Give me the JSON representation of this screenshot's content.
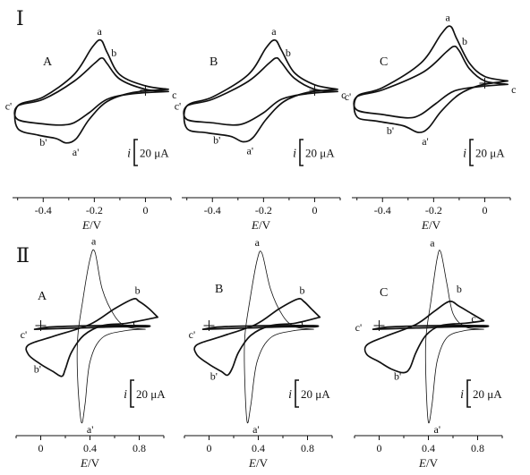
{
  "figure": {
    "row_labels": [
      "Ⅰ",
      "Ⅱ"
    ],
    "panel_labels": [
      "A",
      "B",
      "C"
    ],
    "scale_symbol": "i",
    "scale_value": "20 μA",
    "xlabel": "E/V"
  },
  "chart_data": [
    {
      "type": "line",
      "panel": "Ⅰ-A",
      "xlabel": "E/V",
      "xlim": [
        -0.52,
        0.1
      ],
      "xticks": [
        -0.4,
        -0.2,
        0
      ],
      "tick_labels": [
        "-0.4",
        "-0.2",
        "0"
      ],
      "point_labels": [
        "a",
        "b",
        "c",
        "c'",
        "b'",
        "a'"
      ],
      "series": [
        {
          "label": "outer",
          "values": [
            [
              0.09,
              1
            ],
            [
              0.0,
              4
            ],
            [
              -0.1,
              14
            ],
            [
              -0.15,
              34
            ],
            [
              -0.175,
              45
            ],
            [
              -0.21,
              38
            ],
            [
              -0.28,
              14
            ],
            [
              -0.4,
              -6
            ],
            [
              -0.5,
              -14
            ],
            [
              -0.5,
              -34
            ],
            [
              -0.42,
              -40
            ],
            [
              -0.35,
              -43
            ],
            [
              -0.31,
              -47
            ],
            [
              -0.27,
              -43
            ],
            [
              -0.22,
              -26
            ],
            [
              -0.15,
              -10
            ],
            [
              -0.05,
              -2
            ],
            [
              0.09,
              1
            ]
          ]
        },
        {
          "label": "inner",
          "values": [
            [
              0.09,
              -1
            ],
            [
              0.0,
              1
            ],
            [
              -0.1,
              10
            ],
            [
              -0.15,
              24
            ],
            [
              -0.17,
              29
            ],
            [
              -0.2,
              24
            ],
            [
              -0.28,
              8
            ],
            [
              -0.4,
              -8
            ],
            [
              -0.5,
              -14
            ],
            [
              -0.5,
              -26
            ],
            [
              -0.4,
              -30
            ],
            [
              -0.33,
              -31
            ],
            [
              -0.28,
              -29
            ],
            [
              -0.22,
              -20
            ],
            [
              -0.15,
              -8
            ],
            [
              -0.05,
              -3
            ],
            [
              0.09,
              -1
            ]
          ]
        }
      ]
    },
    {
      "type": "line",
      "panel": "Ⅰ-B",
      "xlabel": "E/V",
      "xlim": [
        -0.52,
        0.1
      ],
      "xticks": [
        -0.4,
        -0.2,
        0
      ],
      "tick_labels": [
        "-0.4",
        "-0.2",
        "0"
      ],
      "point_labels": [
        "a",
        "b",
        "c",
        "c'",
        "b'",
        "a'"
      ],
      "series": [
        {
          "label": "outer",
          "values": [
            [
              0.09,
              1
            ],
            [
              0.0,
              5
            ],
            [
              -0.08,
              16
            ],
            [
              -0.13,
              36
            ],
            [
              -0.155,
              45
            ],
            [
              -0.19,
              38
            ],
            [
              -0.26,
              14
            ],
            [
              -0.4,
              -6
            ],
            [
              -0.5,
              -14
            ],
            [
              -0.5,
              -34
            ],
            [
              -0.42,
              -38
            ],
            [
              -0.33,
              -41
            ],
            [
              -0.28,
              -46
            ],
            [
              -0.24,
              -42
            ],
            [
              -0.19,
              -26
            ],
            [
              -0.12,
              -10
            ],
            [
              -0.03,
              -2
            ],
            [
              0.09,
              1
            ]
          ]
        },
        {
          "label": "inner",
          "values": [
            [
              0.09,
              -1
            ],
            [
              0.0,
              1
            ],
            [
              -0.08,
              11
            ],
            [
              -0.13,
              25
            ],
            [
              -0.15,
              29
            ],
            [
              -0.18,
              24
            ],
            [
              -0.26,
              8
            ],
            [
              -0.4,
              -8
            ],
            [
              -0.5,
              -14
            ],
            [
              -0.5,
              -26
            ],
            [
              -0.4,
              -29
            ],
            [
              -0.32,
              -31
            ],
            [
              -0.27,
              -29
            ],
            [
              -0.2,
              -20
            ],
            [
              -0.13,
              -8
            ],
            [
              -0.03,
              -3
            ],
            [
              0.09,
              -1
            ]
          ]
        }
      ]
    },
    {
      "type": "line",
      "panel": "Ⅰ-C",
      "xlabel": "E/V",
      "xlim": [
        -0.52,
        0.1
      ],
      "xticks": [
        -0.4,
        -0.2,
        0
      ],
      "tick_labels": [
        "-0.4",
        "-0.2",
        "0"
      ],
      "point_labels": [
        "a",
        "b",
        "c",
        "c'",
        "b'",
        "a'"
      ],
      "series": [
        {
          "label": "outer",
          "values": [
            [
              0.09,
              2
            ],
            [
              0.0,
              6
            ],
            [
              -0.06,
              18
            ],
            [
              -0.11,
              40
            ],
            [
              -0.135,
              51
            ],
            [
              -0.17,
              44
            ],
            [
              -0.25,
              18
            ],
            [
              -0.4,
              -4
            ],
            [
              -0.5,
              -12
            ],
            [
              -0.5,
              -30
            ],
            [
              -0.42,
              -34
            ],
            [
              -0.32,
              -38
            ],
            [
              -0.26,
              -44
            ],
            [
              -0.22,
              -40
            ],
            [
              -0.17,
              -25
            ],
            [
              -0.1,
              -10
            ],
            [
              -0.02,
              -2
            ],
            [
              0.09,
              2
            ]
          ]
        },
        {
          "label": "inner",
          "values": [
            [
              0.09,
              -1
            ],
            [
              0.0,
              2
            ],
            [
              -0.06,
              13
            ],
            [
              -0.1,
              29
            ],
            [
              -0.12,
              33
            ],
            [
              -0.15,
              28
            ],
            [
              -0.24,
              10
            ],
            [
              -0.4,
              -6
            ],
            [
              -0.5,
              -12
            ],
            [
              -0.5,
              -24
            ],
            [
              -0.4,
              -28
            ],
            [
              -0.3,
              -31
            ],
            [
              -0.25,
              -28
            ],
            [
              -0.19,
              -18
            ],
            [
              -0.12,
              -7
            ],
            [
              -0.02,
              -3
            ],
            [
              0.09,
              -1
            ]
          ]
        }
      ]
    },
    {
      "type": "line",
      "panel": "Ⅱ-A",
      "xlabel": "E/V",
      "xlim": [
        -0.2,
        1.0
      ],
      "xticks": [
        0,
        0.4,
        0.8
      ],
      "tick_labels": [
        "0",
        "0.4",
        "0.8"
      ],
      "point_labels": [
        "a",
        "b",
        "c",
        "c'",
        "b'",
        "a'"
      ],
      "series": [
        {
          "label": "thin",
          "values": [
            [
              0.85,
              -3
            ],
            [
              0.7,
              -1
            ],
            [
              0.6,
              8
            ],
            [
              0.5,
              30
            ],
            [
              0.44,
              61
            ],
            [
              0.4,
              55
            ],
            [
              0.34,
              20
            ],
            [
              0.3,
              -10
            ],
            [
              0.3,
              -45
            ],
            [
              0.33,
              -80
            ],
            [
              0.36,
              -65
            ],
            [
              0.4,
              -30
            ],
            [
              0.5,
              -10
            ],
            [
              0.7,
              -4
            ],
            [
              0.85,
              -3
            ]
          ]
        },
        {
          "label": "thick",
          "values": [
            [
              0.95,
              7
            ],
            [
              0.88,
              14
            ],
            [
              0.8,
              20
            ],
            [
              0.75,
              22
            ],
            [
              0.6,
              14
            ],
            [
              0.4,
              1
            ],
            [
              0.1,
              -9
            ],
            [
              -0.1,
              -16
            ],
            [
              -0.1,
              -24
            ],
            [
              0.0,
              -32
            ],
            [
              0.1,
              -38
            ],
            [
              0.17,
              -42
            ],
            [
              0.2,
              -36
            ],
            [
              0.25,
              -22
            ],
            [
              0.35,
              -8
            ],
            [
              0.5,
              0
            ],
            [
              0.7,
              2
            ],
            [
              0.95,
              7
            ]
          ]
        },
        {
          "label": "baseline",
          "values": [
            [
              -0.05,
              -3
            ],
            [
              0.3,
              -2
            ],
            [
              0.6,
              -1
            ],
            [
              0.85,
              -1
            ],
            [
              0.85,
              0
            ],
            [
              0.5,
              0
            ],
            [
              0.1,
              -1
            ],
            [
              -0.05,
              -3
            ]
          ]
        }
      ]
    },
    {
      "type": "line",
      "panel": "Ⅱ-B",
      "xlabel": "E/V",
      "xlim": [
        -0.2,
        1.0
      ],
      "xticks": [
        0,
        0.4,
        0.8
      ],
      "tick_labels": [
        "0",
        "0.4",
        "0.8"
      ],
      "point_labels": [
        "a",
        "b",
        "c",
        "c'",
        "b'",
        "a'"
      ],
      "series": [
        {
          "label": "thin",
          "values": [
            [
              0.85,
              -3
            ],
            [
              0.7,
              -1
            ],
            [
              0.6,
              8
            ],
            [
              0.5,
              30
            ],
            [
              0.43,
              60
            ],
            [
              0.39,
              54
            ],
            [
              0.33,
              20
            ],
            [
              0.29,
              -10
            ],
            [
              0.29,
              -45
            ],
            [
              0.31,
              -80
            ],
            [
              0.34,
              -65
            ],
            [
              0.39,
              -30
            ],
            [
              0.5,
              -10
            ],
            [
              0.7,
              -4
            ],
            [
              0.85,
              -3
            ]
          ]
        },
        {
          "label": "thick",
          "values": [
            [
              0.9,
              7
            ],
            [
              0.83,
              14
            ],
            [
              0.77,
              20
            ],
            [
              0.72,
              22
            ],
            [
              0.57,
              14
            ],
            [
              0.38,
              1
            ],
            [
              0.1,
              -9
            ],
            [
              -0.1,
              -16
            ],
            [
              -0.1,
              -24
            ],
            [
              0.0,
              -32
            ],
            [
              0.1,
              -38
            ],
            [
              0.15,
              -41
            ],
            [
              0.19,
              -35
            ],
            [
              0.24,
              -22
            ],
            [
              0.34,
              -8
            ],
            [
              0.5,
              0
            ],
            [
              0.7,
              2
            ],
            [
              0.9,
              7
            ]
          ]
        },
        {
          "label": "baseline",
          "values": [
            [
              -0.05,
              -3
            ],
            [
              0.3,
              -2
            ],
            [
              0.6,
              -1
            ],
            [
              0.85,
              -1
            ],
            [
              0.85,
              0
            ],
            [
              0.5,
              0
            ],
            [
              0.1,
              -1
            ],
            [
              -0.05,
              -3
            ]
          ]
        }
      ]
    },
    {
      "type": "line",
      "panel": "Ⅱ-C",
      "xlabel": "E/V",
      "xlim": [
        -0.2,
        1.0
      ],
      "xticks": [
        0,
        0.4,
        0.8
      ],
      "tick_labels": [
        "0",
        "0.4",
        "0.8"
      ],
      "point_labels": [
        "a",
        "b",
        "c",
        "c'",
        "b'",
        "a'"
      ],
      "series": [
        {
          "label": "thin",
          "values": [
            [
              0.85,
              -3
            ],
            [
              0.7,
              -1
            ],
            [
              0.6,
              10
            ],
            [
              0.55,
              35
            ],
            [
              0.5,
              61
            ],
            [
              0.47,
              55
            ],
            [
              0.42,
              20
            ],
            [
              0.38,
              -10
            ],
            [
              0.38,
              -45
            ],
            [
              0.4,
              -80
            ],
            [
              0.43,
              -65
            ],
            [
              0.47,
              -30
            ],
            [
              0.55,
              -10
            ],
            [
              0.7,
              -4
            ],
            [
              0.85,
              -3
            ]
          ]
        },
        {
          "label": "thick",
          "values": [
            [
              0.85,
              4
            ],
            [
              0.75,
              10
            ],
            [
              0.65,
              16
            ],
            [
              0.57,
              20
            ],
            [
              0.45,
              12
            ],
            [
              0.3,
              1
            ],
            [
              0.05,
              -9
            ],
            [
              -0.1,
              -16
            ],
            [
              -0.1,
              -24
            ],
            [
              0.0,
              -30
            ],
            [
              0.1,
              -36
            ],
            [
              0.2,
              -39
            ],
            [
              0.25,
              -35
            ],
            [
              0.3,
              -22
            ],
            [
              0.38,
              -8
            ],
            [
              0.5,
              0
            ],
            [
              0.7,
              2
            ],
            [
              0.85,
              4
            ]
          ]
        },
        {
          "label": "baseline",
          "values": [
            [
              -0.05,
              -3
            ],
            [
              0.3,
              -2
            ],
            [
              0.6,
              -1
            ],
            [
              0.85,
              -1
            ],
            [
              0.85,
              0
            ],
            [
              0.5,
              0
            ],
            [
              0.1,
              -1
            ],
            [
              -0.05,
              -3
            ]
          ]
        }
      ]
    }
  ]
}
